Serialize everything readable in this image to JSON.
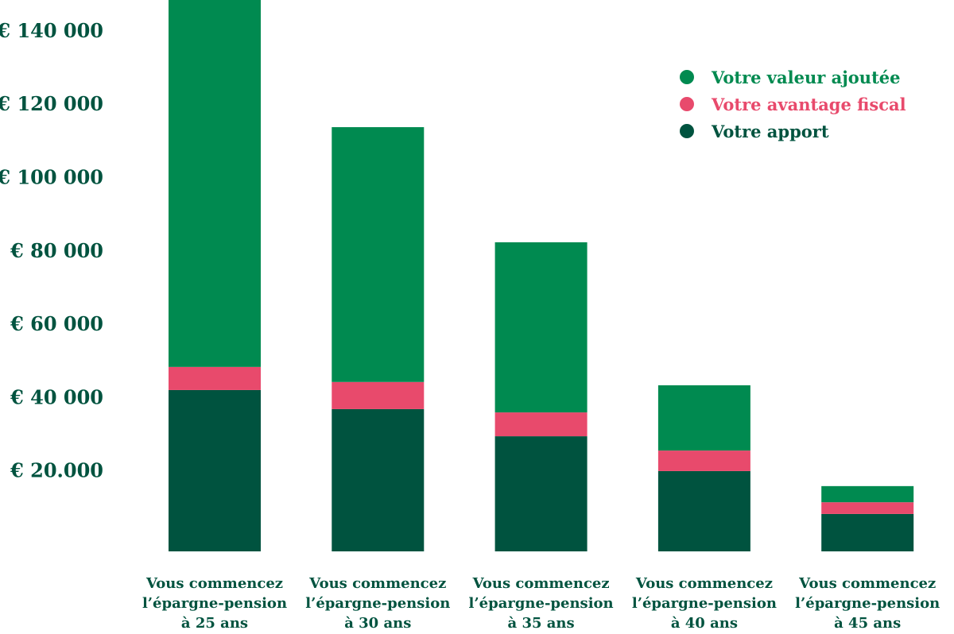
{
  "chart_data": {
    "type": "bar",
    "stacked": true,
    "title": "",
    "xlabel": "",
    "ylabel": "",
    "ylim": [
      0,
      150000
    ],
    "yticks": [
      {
        "value": 20000,
        "label": "€ 20.000"
      },
      {
        "value": 40000,
        "label": "€ 40 000"
      },
      {
        "value": 60000,
        "label": "€ 60 000"
      },
      {
        "value": 80000,
        "label": "€ 80 000"
      },
      {
        "value": 100000,
        "label": "€ 100 000"
      },
      {
        "value": 120000,
        "label": "€ 120 000"
      },
      {
        "value": 140000,
        "label": "€ 140 000"
      }
    ],
    "categories": [
      [
        "Vous commencez",
        "l’épargne-pension",
        "à 25 ans"
      ],
      [
        "Vous commencez",
        "l’épargne-pension",
        "à 30 ans"
      ],
      [
        "Vous commencez",
        "l’épargne-pension",
        "à 35 ans"
      ],
      [
        "Vous commencez",
        "l’épargne-pension",
        "à 40 ans"
      ],
      [
        "Vous commencez",
        "l’épargne-pension",
        "à 45 ans"
      ]
    ],
    "series": [
      {
        "name": "Votre apport",
        "color": "#00533f",
        "values": [
          44000,
          38800,
          31400,
          21900,
          10200
        ]
      },
      {
        "name": "Votre avantage fiscal",
        "color": "#e84a6c",
        "values": [
          6300,
          7400,
          6500,
          5600,
          3200
        ]
      },
      {
        "name": "Votre valeur ajoutée",
        "color": "#008a50",
        "values": [
          100700,
          69500,
          46400,
          17800,
          4400
        ]
      }
    ],
    "legend": {
      "placement": "top-right",
      "order": [
        "Votre valeur ajoutée",
        "Votre avantage fiscal",
        "Votre apport"
      ]
    },
    "grid": false
  }
}
